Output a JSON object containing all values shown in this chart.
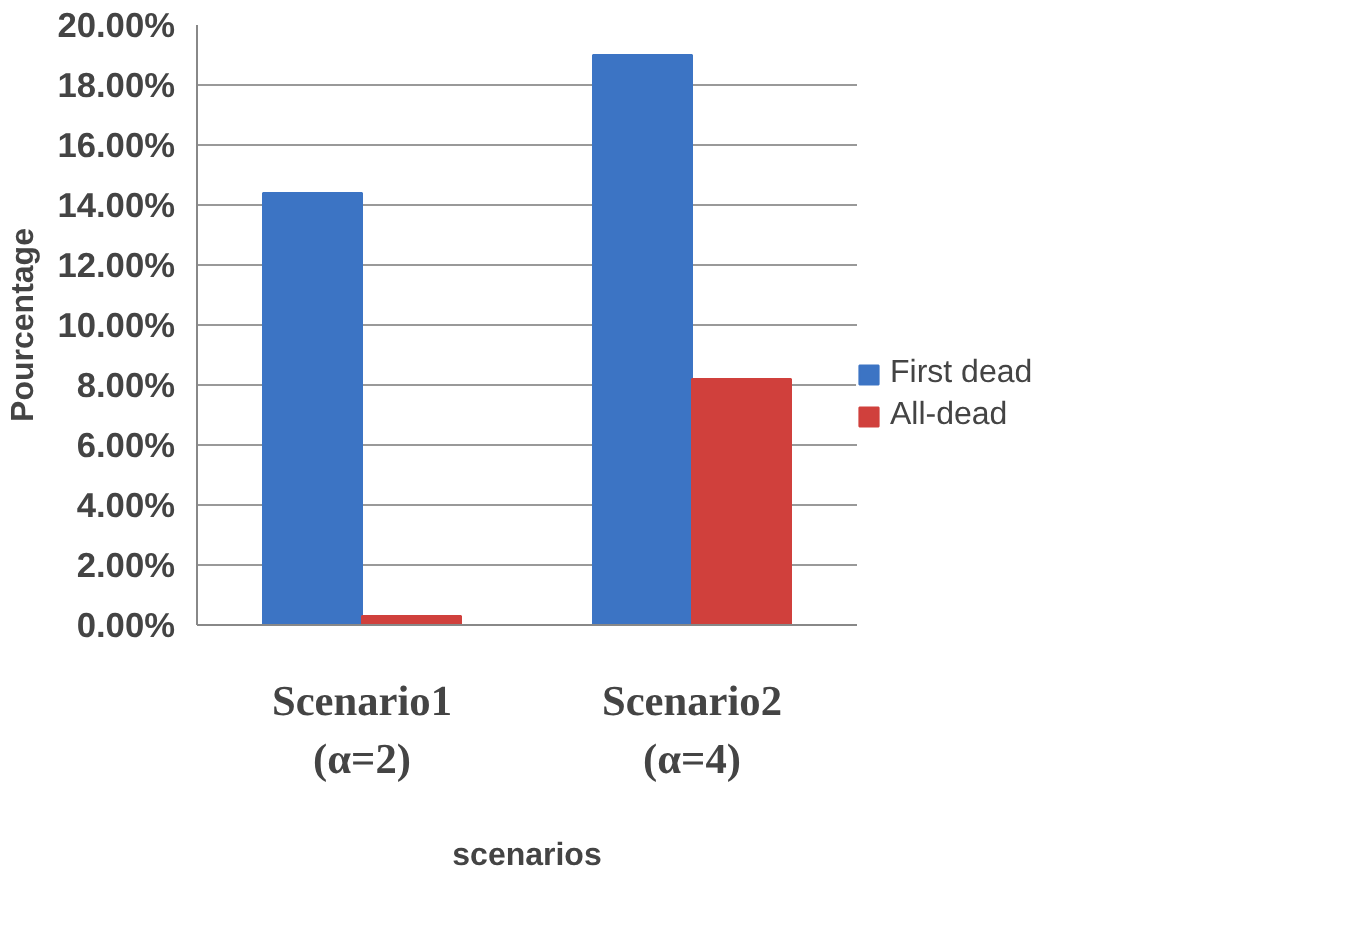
{
  "chart_data": {
    "type": "bar",
    "xlabel": "scenarios",
    "ylabel": "Pourcentage",
    "categories": [
      "Scenario1\n(α=2)",
      "Scenario2\n(α=4)"
    ],
    "series": [
      {
        "name": "First dead",
        "color": "#3c74c4",
        "values": [
          14.4,
          19.0
        ]
      },
      {
        "name": "All-dead",
        "color": "#d0403c",
        "values": [
          0.3,
          8.2
        ]
      }
    ],
    "ylim": [
      0,
      20
    ],
    "yticks": [
      {
        "value": 0,
        "label": "0.00%"
      },
      {
        "value": 2,
        "label": "2.00%"
      },
      {
        "value": 4,
        "label": "4.00%"
      },
      {
        "value": 6,
        "label": "6.00%"
      },
      {
        "value": 8,
        "label": "8.00%"
      },
      {
        "value": 10,
        "label": "10.00%"
      },
      {
        "value": 12,
        "label": "12.00%"
      },
      {
        "value": 14,
        "label": "14.00%"
      },
      {
        "value": 16,
        "label": "16.00%"
      },
      {
        "value": 18,
        "label": "18.00%"
      },
      {
        "value": 20,
        "label": "20.00%"
      }
    ],
    "grid": "y",
    "legend": "right"
  }
}
